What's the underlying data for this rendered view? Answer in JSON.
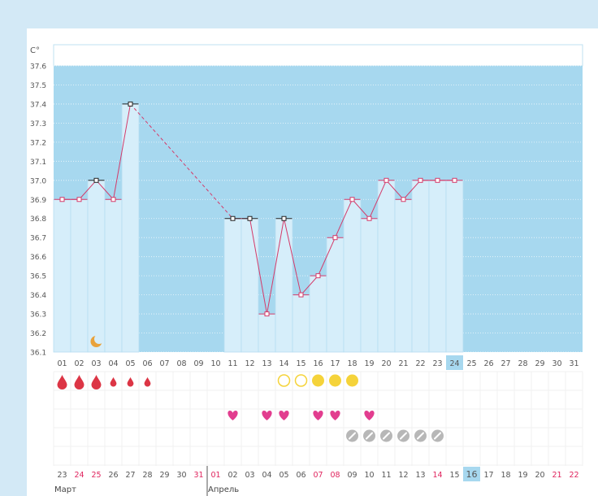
{
  "chart_data": {
    "type": "line",
    "ylabel": "C°",
    "ylim": [
      36.1,
      37.6
    ],
    "yticks": [
      "37.6",
      "37.5",
      "37.4",
      "37.3",
      "37.2",
      "37.1",
      "37.0",
      "36.9",
      "36.8",
      "36.7",
      "36.6",
      "36.5",
      "36.4",
      "36.3",
      "36.2",
      "36.1"
    ],
    "ytick_values": [
      37.6,
      37.5,
      37.4,
      37.3,
      37.2,
      37.1,
      37.0,
      36.9,
      36.8,
      36.7,
      36.6,
      36.5,
      36.4,
      36.3,
      36.2,
      36.1
    ],
    "cycle_days": [
      "01",
      "02",
      "03",
      "04",
      "05",
      "06",
      "07",
      "08",
      "09",
      "10",
      "11",
      "12",
      "13",
      "14",
      "15",
      "16",
      "17",
      "18",
      "19",
      "20",
      "21",
      "22",
      "23",
      "24",
      "25",
      "26",
      "27",
      "28",
      "29",
      "30",
      "31"
    ],
    "highlighted_day": "24",
    "series": [
      {
        "values": [
          36.9,
          36.9,
          37.0,
          36.9,
          37.4,
          null,
          null,
          null,
          null,
          null,
          36.8,
          36.8,
          36.3,
          36.8,
          36.4,
          36.5,
          36.7,
          36.9,
          36.8,
          37.0,
          36.9,
          37.0,
          37.0,
          37.0,
          null,
          null,
          null,
          null,
          null,
          null,
          null
        ],
        "color": "#d43b6a"
      }
    ],
    "black_markers_days": [
      3,
      5,
      11,
      12,
      14
    ],
    "dashed_gap": {
      "from_day": 5,
      "to_day": 11
    },
    "moon_day": 3,
    "colors": {
      "plot_bg": "#a7d8ef",
      "bar_fill": "#d6eefa",
      "bar_edge": "#b6dcf2",
      "line": "#d43b6a",
      "highlight": "#a7d8ef"
    }
  },
  "symbols": {
    "drops": [
      {
        "day": 1,
        "size": "large"
      },
      {
        "day": 2,
        "size": "large"
      },
      {
        "day": 3,
        "size": "large"
      },
      {
        "day": 4,
        "size": "small"
      },
      {
        "day": 5,
        "size": "small"
      },
      {
        "day": 6,
        "size": "small"
      }
    ],
    "circles_outline_days": [
      14,
      15
    ],
    "circles_filled_days": [
      16,
      17,
      18
    ],
    "hearts_days": [
      11,
      13,
      14,
      16,
      17,
      19
    ],
    "pills_days": [
      18,
      19,
      20,
      21,
      22,
      23
    ],
    "colors": {
      "drop": "#dc3545",
      "circle": "#f5d33a",
      "heart": "#e23d8f",
      "pill": "#b7b7b7"
    }
  },
  "calendar": {
    "dates": [
      {
        "d": "23",
        "red": false
      },
      {
        "d": "24",
        "red": true
      },
      {
        "d": "25",
        "red": true
      },
      {
        "d": "26",
        "red": false
      },
      {
        "d": "27",
        "red": false
      },
      {
        "d": "28",
        "red": false
      },
      {
        "d": "29",
        "red": false
      },
      {
        "d": "30",
        "red": false
      },
      {
        "d": "31",
        "red": true
      },
      {
        "d": "01",
        "red": true
      },
      {
        "d": "02",
        "red": false
      },
      {
        "d": "03",
        "red": false
      },
      {
        "d": "04",
        "red": false
      },
      {
        "d": "05",
        "red": false
      },
      {
        "d": "06",
        "red": false
      },
      {
        "d": "07",
        "red": true
      },
      {
        "d": "08",
        "red": true
      },
      {
        "d": "09",
        "red": false
      },
      {
        "d": "10",
        "red": false
      },
      {
        "d": "11",
        "red": false
      },
      {
        "d": "12",
        "red": false
      },
      {
        "d": "13",
        "red": false
      },
      {
        "d": "14",
        "red": true
      },
      {
        "d": "15",
        "red": false
      },
      {
        "d": "16",
        "red": false
      },
      {
        "d": "17",
        "red": false
      },
      {
        "d": "18",
        "red": false
      },
      {
        "d": "19",
        "red": false
      },
      {
        "d": "20",
        "red": false
      },
      {
        "d": "21",
        "red": true
      },
      {
        "d": "22",
        "red": true
      }
    ],
    "highlighted_index": 24,
    "months": [
      {
        "label": "Март",
        "start_index": 1
      },
      {
        "label": "Апрель",
        "start_index": 10
      }
    ]
  }
}
